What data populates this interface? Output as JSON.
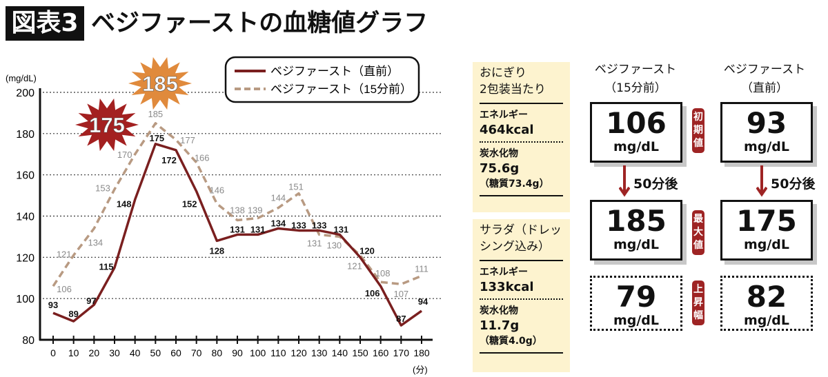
{
  "header": {
    "badge": "図表3",
    "title": "ベジファーストの血糖値グラフ"
  },
  "chart_data": {
    "type": "line",
    "ylabel": "(mg/dL)",
    "xunit": "(分)",
    "x": [
      0,
      10,
      20,
      30,
      40,
      50,
      60,
      70,
      80,
      90,
      100,
      110,
      120,
      130,
      140,
      150,
      160,
      170,
      180
    ],
    "ylim": [
      80,
      200
    ],
    "yticks": [
      80,
      100,
      120,
      140,
      160,
      180,
      200
    ],
    "grid": true,
    "legend_position": "top-right",
    "series": [
      {
        "name": "ベジファースト（直前）",
        "color": "#7a1f1f",
        "style": "solid",
        "values": [
          93,
          89,
          97,
          115,
          148,
          175,
          172,
          152,
          128,
          131,
          131,
          134,
          133,
          133,
          131,
          120,
          106,
          87,
          94
        ]
      },
      {
        "name": "ベジファースト（15分前）",
        "color": "#b89a82",
        "style": "dashed",
        "values": [
          106,
          121,
          134,
          153,
          170,
          185,
          177,
          166,
          146,
          138,
          139,
          144,
          151,
          131,
          130,
          121,
          108,
          107,
          111
        ]
      }
    ],
    "annotations": [
      {
        "text": "185",
        "color": "#e08a3c"
      },
      {
        "text": "175",
        "color": "#a32020"
      }
    ]
  },
  "food": [
    {
      "name": "おにぎり2包装当たり",
      "energy_label": "エネルギー",
      "energy": "464kcal",
      "carb_label": "炭水化物",
      "carb": "75.6g",
      "sugar": "（糖質73.4g）"
    },
    {
      "name": "サラダ（ドレッシング込み）",
      "energy_label": "エネルギー",
      "energy": "133kcal",
      "carb_label": "炭水化物",
      "carb": "11.7g",
      "sugar": "（糖質4.0g）"
    }
  ],
  "food_name_lines": [
    [
      "おにぎり",
      "2包装当たり"
    ],
    [
      "サラダ（ドレッ",
      "シング込み）"
    ]
  ],
  "comparison": {
    "columns": [
      {
        "title": "ベジファースト",
        "sub": "（15分前）",
        "initial": "106",
        "max": "185",
        "rise": "79",
        "after": "50分後"
      },
      {
        "title": "ベジファースト",
        "sub": "（直前）",
        "initial": "93",
        "max": "175",
        "rise": "82",
        "after": "50分後"
      }
    ],
    "unit": "mg/dL",
    "row_labels": [
      "初期値",
      "最大値",
      "上昇幅"
    ],
    "tag_color": "#9e2424"
  }
}
